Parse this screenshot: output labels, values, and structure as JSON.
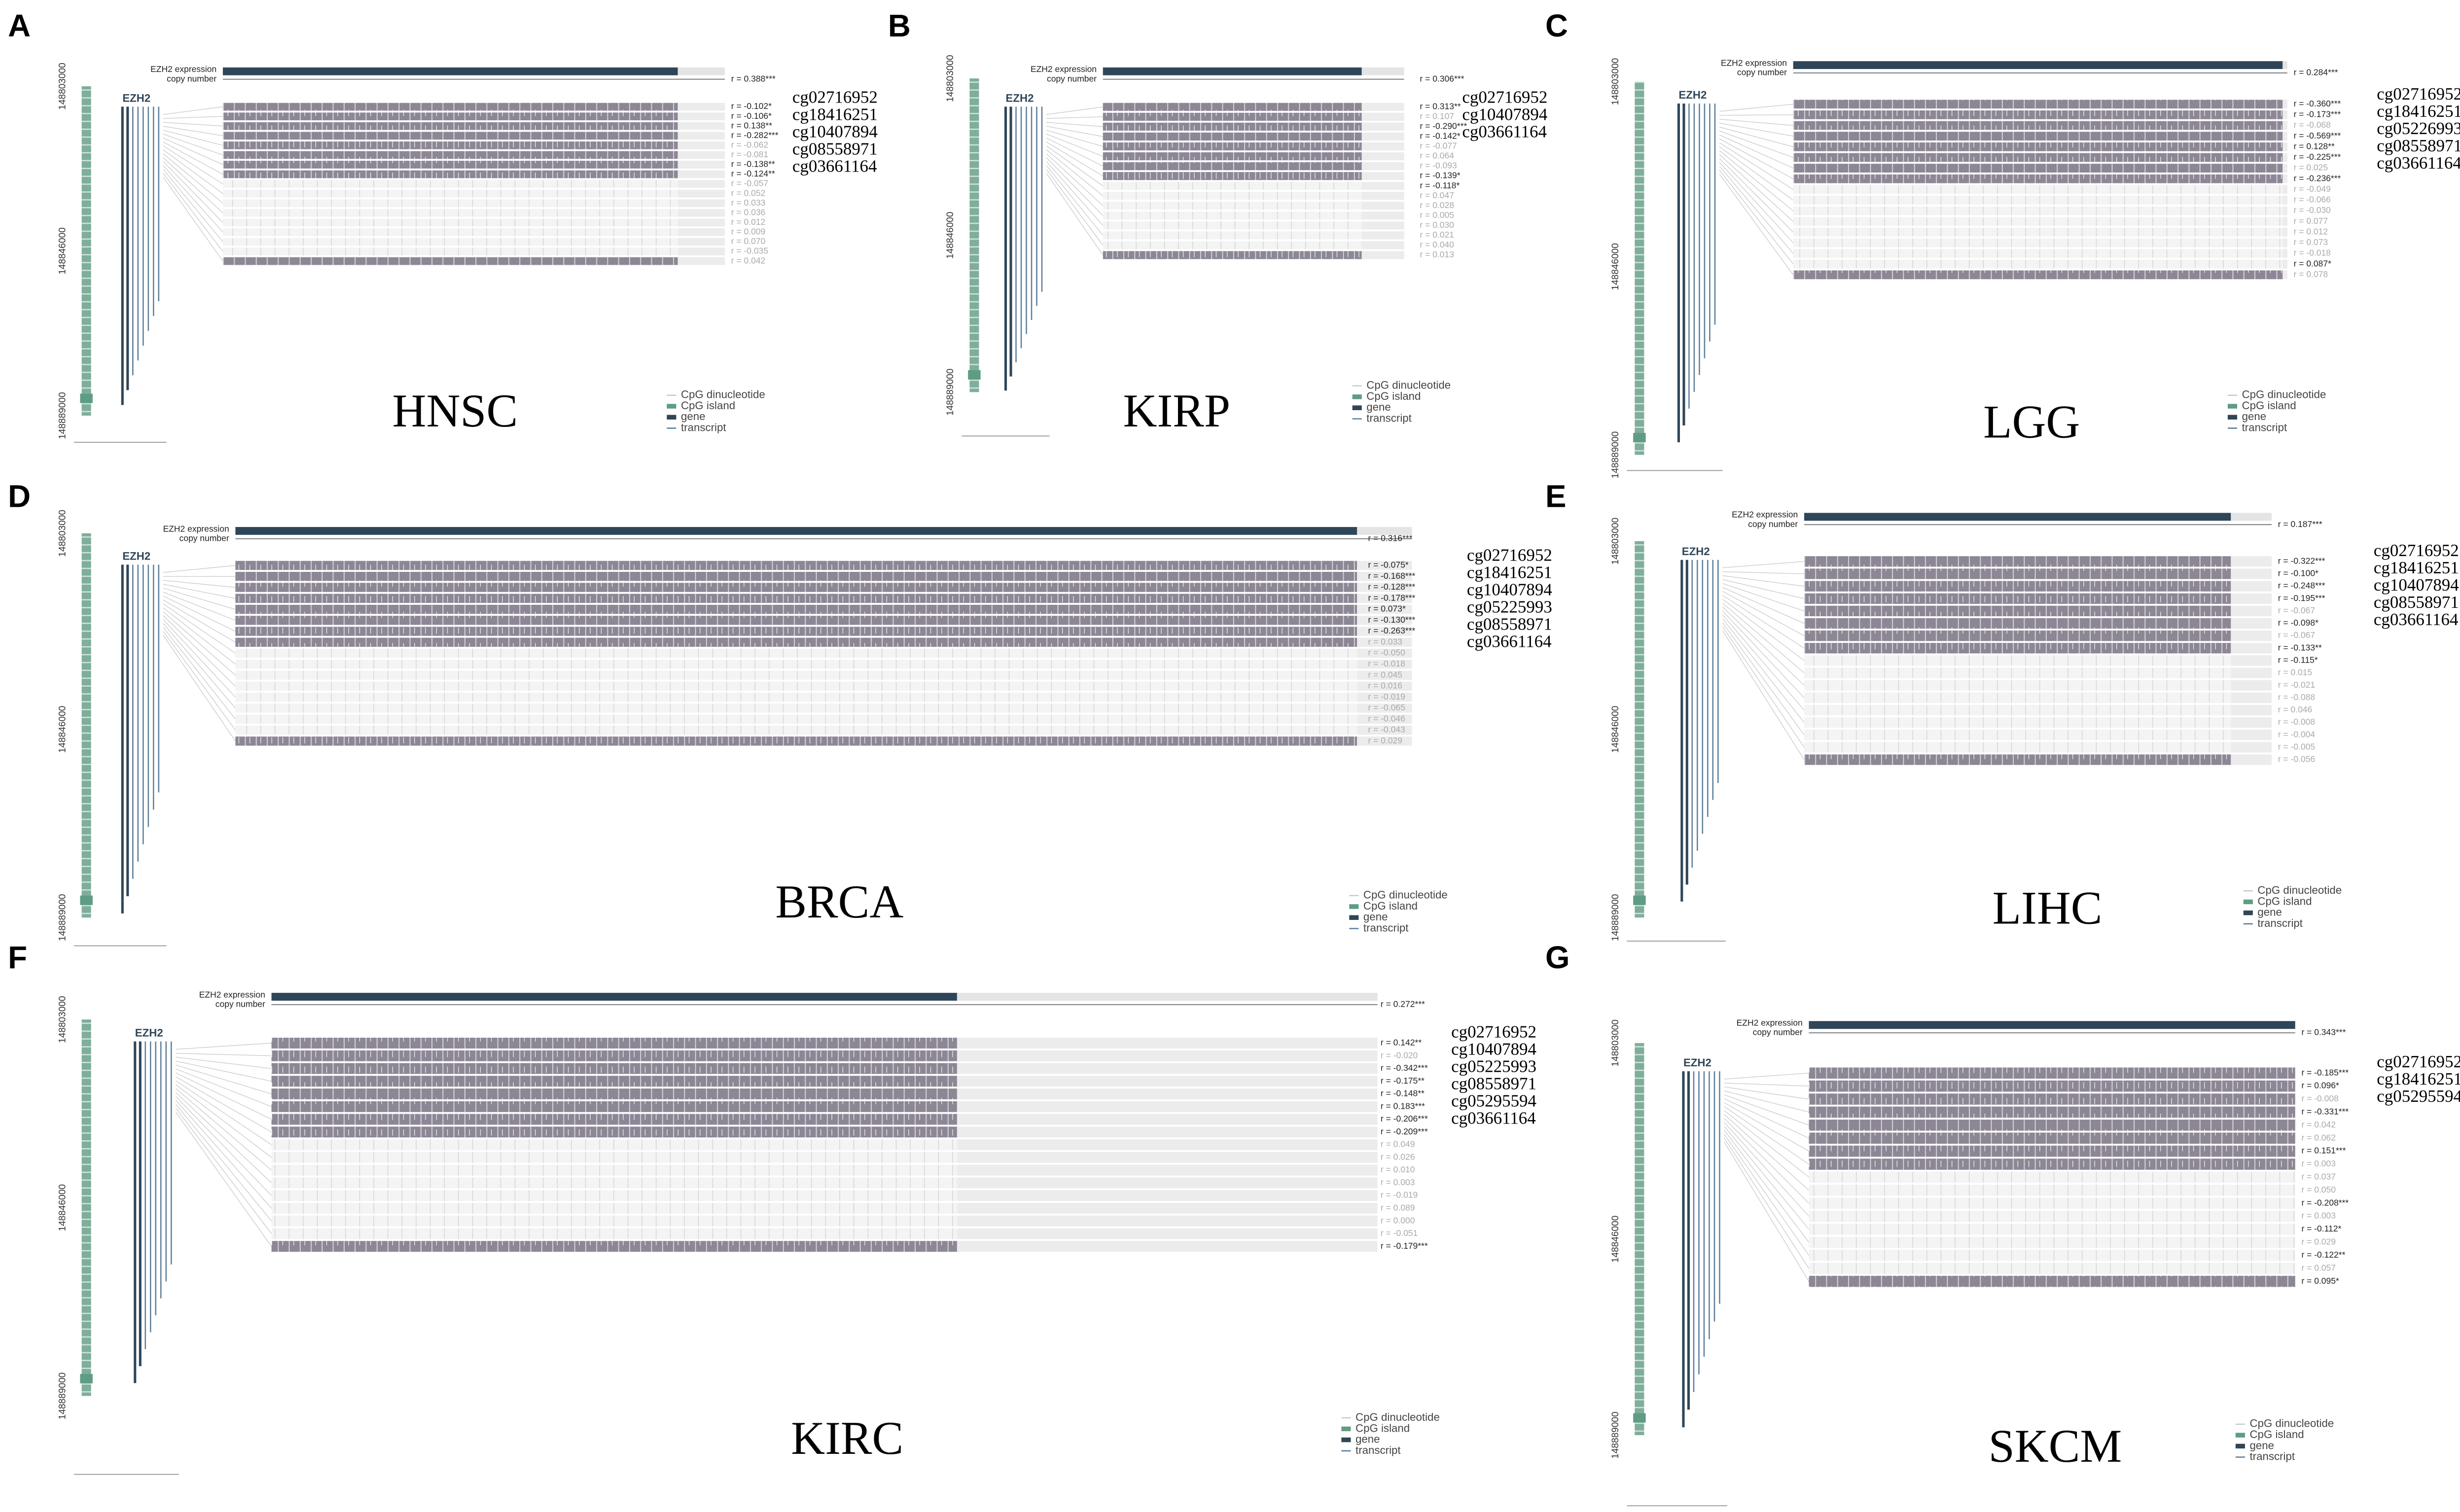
{
  "expression_label": "EZH2 expression",
  "copy_number_label": "copy number",
  "gene": "EZH2",
  "genome_ticks": [
    "148803000",
    "148846000",
    "148889000"
  ],
  "legend": [
    "CpG dinucleotide",
    "CpG island",
    "gene",
    "transcript"
  ],
  "panels": [
    {
      "label": "A",
      "cancer": "HNSC",
      "expression_r": "r = 0.388***",
      "r_values": [
        "r = -0.102*",
        "r = -0.106*",
        "r = 0.138**",
        "r = -0.282***",
        "r = -0.062",
        "r = -0.081",
        "r = -0.138**",
        "r = -0.124**",
        "r = -0.057",
        "r = 0.052",
        "r = 0.033",
        "r = 0.036",
        "r = 0.012",
        "r = 0.009",
        "r = 0.070",
        "r = -0.035",
        "r = 0.042"
      ],
      "probes": [
        "cg02716952",
        "cg18416251",
        "cg10407894",
        "cg08558971",
        "cg03661164"
      ]
    },
    {
      "label": "B",
      "cancer": "KIRP",
      "expression_r": "r = 0.306***",
      "r_values": [
        "r = 0.313**",
        "r = 0.107",
        "r = -0.290***",
        "r = -0.142*",
        "r = -0.077",
        "r = 0.064",
        "r = -0.093",
        "r = -0.139*",
        "r = -0.118*",
        "r = 0.047",
        "r = 0.028",
        "r = 0.005",
        "r = 0.030",
        "r = 0.021",
        "r = 0.040",
        "r = 0.013"
      ],
      "probes": [
        "cg02716952",
        "cg10407894",
        "cg03661164"
      ]
    },
    {
      "label": "C",
      "cancer": "LGG",
      "expression_r": "r = 0.284***",
      "r_values": [
        "r = -0.360***",
        "r = -0.173***",
        "r = -0.068",
        "r = -0.569***",
        "r = 0.128**",
        "r = -0.225***",
        "r = 0.025",
        "r = -0.236***",
        "r = -0.049",
        "r = -0.066",
        "r = -0.030",
        "r = 0.077",
        "r = 0.012",
        "r = 0.073",
        "r = -0.018",
        "r = 0.087*",
        "r = 0.078"
      ],
      "probes": [
        "cg02716952",
        "cg18416251",
        "cg05226993",
        "cg08558971",
        "cg03661164"
      ]
    },
    {
      "label": "D",
      "cancer": "BRCA",
      "expression_r": "r = 0.316***",
      "r_values": [
        "r = -0.075*",
        "r = -0.168***",
        "r = -0.128***",
        "r = -0.178***",
        "r = 0.073*",
        "r = -0.130***",
        "r = -0.263***",
        "r = 0.033",
        "r = -0.050",
        "r = -0.018",
        "r = 0.045",
        "r = 0.016",
        "r = -0.019",
        "r = -0.065",
        "r = -0.046",
        "r = -0.043",
        "r = 0.029"
      ],
      "probes": [
        "cg02716952",
        "cg18416251",
        "cg10407894",
        "cg05225993",
        "cg08558971",
        "cg03661164"
      ]
    },
    {
      "label": "E",
      "cancer": "LIHC",
      "expression_r": "r = 0.187***",
      "r_values": [
        "r = -0.322***",
        "r = -0.100*",
        "r = -0.248***",
        "r = -0.195***",
        "r = -0.067",
        "r = -0.098*",
        "r = -0.067",
        "r = -0.133**",
        "r = -0.115*",
        "r = 0.015",
        "r = -0.021",
        "r = -0.088",
        "r = 0.046",
        "r = -0.008",
        "r = -0.004",
        "r = -0.005",
        "r = -0.056"
      ],
      "probes": [
        "cg02716952",
        "cg18416251",
        "cg10407894",
        "cg08558971",
        "cg03661164"
      ]
    },
    {
      "label": "F",
      "cancer": "KIRC",
      "expression_r": "r = 0.272***",
      "r_values": [
        "r = 0.142**",
        "r = -0.020",
        "r = -0.342***",
        "r = -0.175**",
        "r = -0.148**",
        "r = 0.183***",
        "r = -0.206***",
        "r = -0.209***",
        "r = 0.049",
        "r = 0.026",
        "r = 0.010",
        "r = 0.003",
        "r = -0.019",
        "r = 0.089",
        "r = 0.000",
        "r = -0.051",
        "r = -0.179***"
      ],
      "probes": [
        "cg02716952",
        "cg10407894",
        "cg05225993",
        "cg08558971",
        "cg05295594",
        "cg03661164"
      ]
    },
    {
      "label": "G",
      "cancer": "SKCM",
      "expression_r": "r = 0.343***",
      "r_values": [
        "r = -0.185***",
        "r = 0.096*",
        "r = -0.008",
        "r = -0.331***",
        "r = 0.042",
        "r = 0.062",
        "r = 0.151***",
        "r = 0.003",
        "r = 0.037",
        "r = 0.050",
        "r = -0.208***",
        "r = 0.003",
        "r = -0.112*",
        "r = 0.029",
        "r = -0.122**",
        "r = 0.057",
        "r = 0.095*"
      ],
      "probes": [
        "cg02716952",
        "cg18416251",
        "cg05295594"
      ]
    }
  ]
}
